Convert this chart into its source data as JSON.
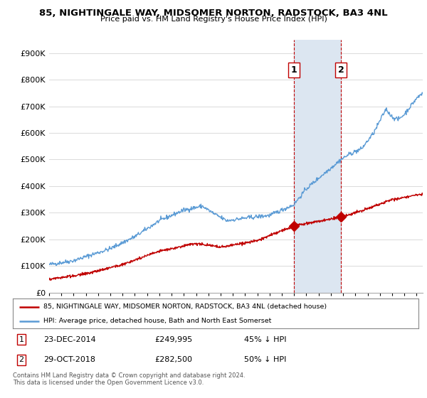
{
  "title": "85, NIGHTINGALE WAY, MIDSOMER NORTON, RADSTOCK, BA3 4NL",
  "subtitle": "Price paid vs. HM Land Registry's House Price Index (HPI)",
  "legend_label_red": "85, NIGHTINGALE WAY, MIDSOMER NORTON, RADSTOCK, BA3 4NL (detached house)",
  "legend_label_blue": "HPI: Average price, detached house, Bath and North East Somerset",
  "transaction1_label": "1",
  "transaction1_date": "23-DEC-2014",
  "transaction1_price": "£249,995",
  "transaction1_hpi": "45% ↓ HPI",
  "transaction2_label": "2",
  "transaction2_date": "29-OCT-2018",
  "transaction2_price": "£282,500",
  "transaction2_hpi": "50% ↓ HPI",
  "footer": "Contains HM Land Registry data © Crown copyright and database right 2024.\nThis data is licensed under the Open Government Licence v3.0.",
  "hpi_color": "#5b9bd5",
  "price_color": "#c00000",
  "shaded_color": "#dce6f1",
  "vline_color": "#c00000",
  "transaction1_x": 2014.97,
  "transaction2_x": 2018.83,
  "transaction1_y": 249995,
  "transaction2_y": 282500,
  "ylim": [
    0,
    950000
  ],
  "xlim_start": 1995.0,
  "xlim_end": 2025.5
}
